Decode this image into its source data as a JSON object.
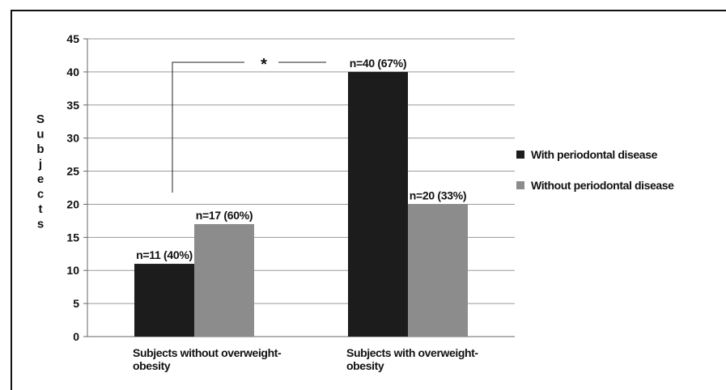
{
  "chart_data": {
    "type": "bar",
    "title": "",
    "xlabel": "",
    "ylabel": "Subjects",
    "ylim": [
      0,
      45
    ],
    "yticks": [
      0,
      5,
      10,
      15,
      20,
      25,
      30,
      35,
      40,
      45
    ],
    "grid": true,
    "legend_position": "right",
    "categories": [
      [
        "Subjects without  overweight-",
        "obesity"
      ],
      [
        "Subjects with overweight-",
        "obesity"
      ]
    ],
    "series": [
      {
        "name": "With periodontal disease",
        "color": "#1c1c1c",
        "values": [
          11,
          40
        ],
        "labels": [
          "n=11 (40%)",
          "n=40 (67%)"
        ]
      },
      {
        "name": "Without periodontal disease",
        "color": "#8c8c8c",
        "values": [
          17,
          20
        ],
        "labels": [
          "n=17 (60%)",
          "n=20 (33%)"
        ]
      }
    ],
    "annotations": [
      {
        "text": "*",
        "meaning": "significance bracket"
      }
    ]
  }
}
